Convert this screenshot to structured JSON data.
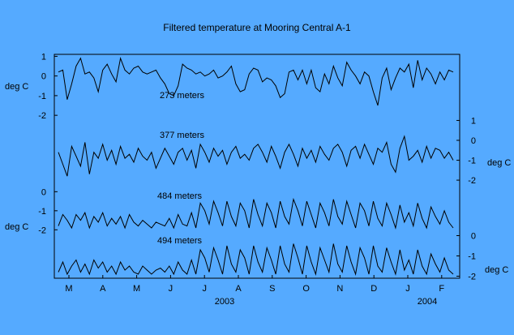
{
  "background_color": "#55aaff",
  "line_color": "#000000",
  "chart_data": {
    "type": "line",
    "title": "Filtered temperature at Mooring Central A-1",
    "grid": false,
    "x_axis": {
      "month_labels": [
        "M",
        "A",
        "M",
        "J",
        "J",
        "A",
        "S",
        "O",
        "N",
        "D",
        "J",
        "F"
      ],
      "year_labels": [
        "2003",
        "2004"
      ],
      "start": "2003-03",
      "end": "2004-02"
    },
    "series": [
      {
        "name": "273 meters",
        "unit": "deg C",
        "axis": "left",
        "ticks": [
          "1",
          "0",
          "-1",
          "-2"
        ],
        "ylim": [
          -2.2,
          1.1
        ],
        "values": [
          0.2,
          0.3,
          -1.2,
          -0.4,
          0.5,
          0.9,
          0.1,
          0.2,
          -0.1,
          -0.8,
          0.3,
          0.6,
          0.1,
          -0.3,
          0.9,
          0.3,
          0.1,
          0.4,
          0.5,
          0.2,
          0.1,
          0.2,
          0.3,
          -0.1,
          -0.4,
          -0.9,
          -1.0,
          -0.5,
          0.6,
          0.4,
          0.3,
          0.1,
          0.2,
          0.0,
          0.1,
          0.3,
          -0.1,
          0.0,
          0.2,
          0.5,
          -0.4,
          -0.8,
          -0.7,
          0.1,
          0.4,
          0.3,
          -0.3,
          -0.1,
          -0.2,
          -0.5,
          -1.1,
          -0.9,
          0.2,
          0.3,
          -0.2,
          0.3,
          -0.4,
          0.3,
          -0.6,
          -0.8,
          0.1,
          -0.4,
          0.5,
          -0.1,
          -0.5,
          0.7,
          0.3,
          0.0,
          -0.4,
          0.2,
          0.0,
          -0.8,
          -1.5,
          -0.1,
          0.4,
          -0.7,
          -0.1,
          0.4,
          0.2,
          0.6,
          -0.6,
          0.8,
          -0.2,
          0.4,
          0.1,
          -0.4,
          0.2,
          -0.2,
          0.3,
          0.2
        ]
      },
      {
        "name": "377 meters",
        "unit": "deg C",
        "axis": "right",
        "ticks": [
          "1",
          "0",
          "-1",
          "-2"
        ],
        "ylim": [
          -2.2,
          1.1
        ],
        "values": [
          -0.6,
          -1.2,
          -1.8,
          -0.3,
          -0.8,
          -1.3,
          -0.1,
          -1.7,
          -0.6,
          -0.9,
          -0.2,
          -1.0,
          -0.5,
          -1.2,
          -0.3,
          -0.9,
          -0.7,
          -1.1,
          -0.4,
          -0.8,
          -1.0,
          -0.6,
          -1.4,
          -0.9,
          -0.4,
          -0.8,
          -1.2,
          -0.6,
          -0.4,
          -1.0,
          -0.5,
          -1.4,
          -0.2,
          -0.6,
          -1.1,
          -0.4,
          -0.8,
          -0.5,
          -1.2,
          -0.6,
          -0.3,
          -0.9,
          -0.7,
          -1.0,
          -0.4,
          -0.2,
          -0.6,
          -1.1,
          -0.3,
          -0.8,
          -1.4,
          -0.6,
          -0.2,
          -0.7,
          -1.3,
          -0.4,
          -0.9,
          -0.5,
          -1.1,
          -0.3,
          -0.7,
          -1.0,
          -0.4,
          -0.2,
          -0.6,
          -1.3,
          -0.5,
          -0.3,
          -0.9,
          -0.2,
          -0.7,
          -1.2,
          -0.4,
          -0.6,
          -0.1,
          -1.2,
          -1.6,
          -0.4,
          0.2,
          -1.0,
          -0.8,
          -0.5,
          -1.1,
          -0.3,
          -0.9,
          -0.4,
          -0.5,
          -0.9,
          -0.6,
          -1.0
        ]
      },
      {
        "name": "484 meters",
        "unit": "deg C",
        "axis": "left",
        "ticks": [
          "0",
          "-1",
          "-2"
        ],
        "ylim": [
          -2.2,
          0.1
        ],
        "values": [
          -1.8,
          -1.2,
          -1.5,
          -1.9,
          -1.2,
          -1.5,
          -1.1,
          -1.9,
          -1.3,
          -1.6,
          -1.1,
          -1.8,
          -1.4,
          -1.7,
          -1.3,
          -1.9,
          -1.2,
          -1.6,
          -1.8,
          -1.5,
          -1.7,
          -1.9,
          -1.6,
          -1.7,
          -1.8,
          -1.4,
          -1.9,
          -1.2,
          -1.7,
          -1.8,
          -1.1,
          -1.9,
          -0.6,
          -1.0,
          -1.7,
          -0.5,
          -1.1,
          -1.8,
          -0.5,
          -1.3,
          -1.8,
          -0.6,
          -1.0,
          -1.9,
          -0.4,
          -1.2,
          -1.8,
          -0.6,
          -1.1,
          -1.9,
          -0.5,
          -1.3,
          -1.7,
          -0.4,
          -1.0,
          -1.8,
          -0.5,
          -1.2,
          -1.9,
          -0.6,
          -1.1,
          -1.8,
          -0.4,
          -1.3,
          -1.7,
          -0.5,
          -1.2,
          -1.9,
          -0.6,
          -1.0,
          -1.8,
          -0.5,
          -1.4,
          -1.8,
          -0.6,
          -1.2,
          -1.9,
          -0.7,
          -1.6,
          -1.1,
          -1.8,
          -0.6,
          -1.4,
          -1.9,
          -0.8,
          -1.3,
          -1.7,
          -1.0,
          -1.6,
          -1.9
        ]
      },
      {
        "name": "494 meters",
        "unit": "deg C",
        "axis": "right",
        "ticks": [
          "0",
          "-1",
          "-2"
        ],
        "ylim": [
          -2.1,
          0.1
        ],
        "values": [
          -1.8,
          -1.3,
          -1.9,
          -1.5,
          -1.2,
          -1.8,
          -1.4,
          -1.9,
          -1.2,
          -1.6,
          -1.3,
          -1.8,
          -1.5,
          -1.9,
          -1.3,
          -1.7,
          -1.5,
          -1.8,
          -1.9,
          -1.5,
          -1.7,
          -1.9,
          -1.7,
          -1.6,
          -1.8,
          -1.5,
          -1.9,
          -1.3,
          -1.7,
          -1.9,
          -1.2,
          -1.9,
          -0.7,
          -1.1,
          -1.8,
          -0.6,
          -1.2,
          -1.9,
          -0.5,
          -1.4,
          -1.8,
          -0.7,
          -1.1,
          -1.9,
          -0.5,
          -1.3,
          -1.8,
          -0.6,
          -1.2,
          -1.9,
          -0.5,
          -1.4,
          -1.8,
          -0.4,
          -1.1,
          -1.9,
          -0.5,
          -1.3,
          -1.9,
          -0.6,
          -1.2,
          -1.8,
          -0.4,
          -1.4,
          -1.8,
          -0.5,
          -1.3,
          -1.9,
          -0.6,
          -1.1,
          -1.9,
          -0.5,
          -1.5,
          -1.8,
          -0.6,
          -1.3,
          -1.9,
          -0.7,
          -1.7,
          -1.2,
          -1.9,
          -0.7,
          -1.5,
          -1.9,
          -0.9,
          -1.4,
          -1.8,
          -1.1,
          -1.7,
          -1.9
        ]
      }
    ]
  }
}
